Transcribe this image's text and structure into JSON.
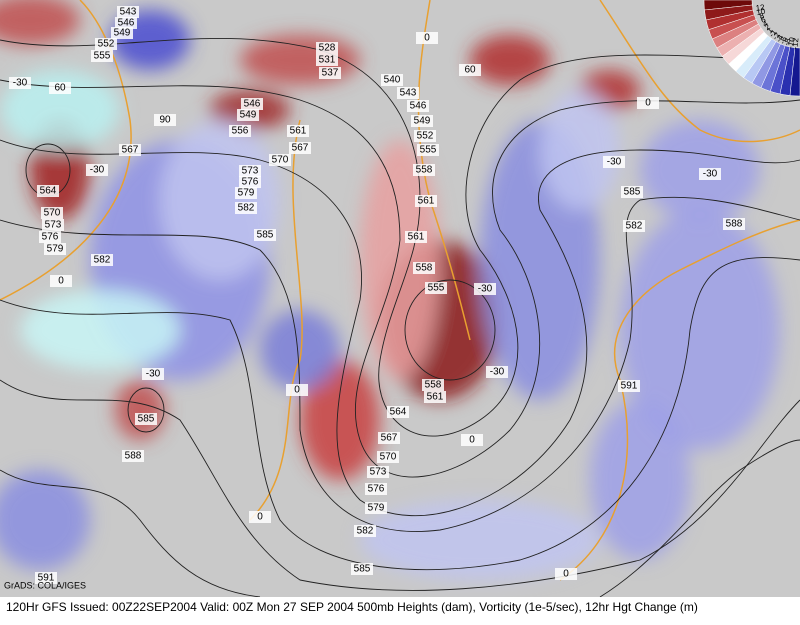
{
  "caption": "120Hr GFS Issued: 00Z22SEP2004 Valid: 00Z Mon 27 SEP 2004   500mb Heights (dam), Vorticity (1e-5/sec), 12hr Hgt Change (m)",
  "credit": "GrADS: COLA/IGES",
  "colorbar": {
    "labels": [
      "12",
      "10",
      "8",
      "6",
      "4",
      "2",
      "1",
      "-1",
      "-2",
      "-4",
      "-6",
      "-8",
      "-10",
      "-12"
    ]
  },
  "contour_labels": [
    "543",
    "546",
    "549",
    "552",
    "555",
    "528",
    "531",
    "537",
    "540",
    "543",
    "546",
    "549",
    "552",
    "555",
    "558",
    "561",
    "546",
    "549",
    "556",
    "561",
    "567",
    "570",
    "573",
    "576",
    "579",
    "582",
    "585",
    "567",
    "564",
    "570",
    "573",
    "576",
    "579",
    "582",
    "561",
    "558",
    "555",
    "558",
    "561",
    "564",
    "567",
    "570",
    "573",
    "576",
    "579",
    "582",
    "585",
    "585",
    "588",
    "591",
    "585",
    "582",
    "588",
    "591",
    "-30",
    "-30",
    "-30",
    "-30",
    "-30",
    "-30",
    "-30",
    "0",
    "0",
    "0",
    "0",
    "0",
    "0",
    "0",
    "60",
    "60",
    "90"
  ]
}
